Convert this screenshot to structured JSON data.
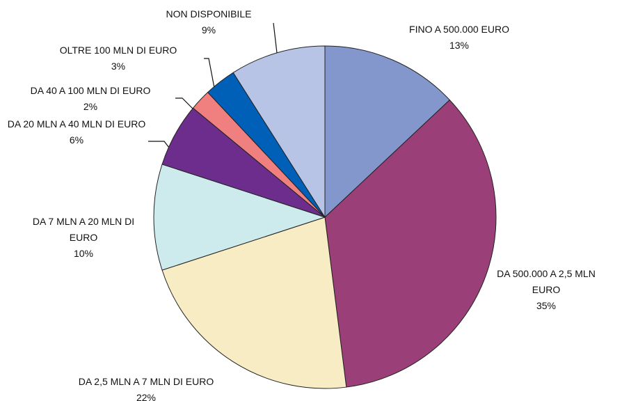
{
  "chart_data": {
    "type": "pie",
    "categories": [
      "FINO A 500.000 EURO",
      "DA 500.000 A 2,5 MLN EURO",
      "DA 2,5 MLN A 7 MLN DI EURO",
      "DA  7 MLN A 20 MLN DI EURO",
      "DA 20 MLN A 40 MLN DI EURO",
      "DA 40 A 100 MLN DI EURO",
      "OLTRE 100 MLN DI EURO",
      "NON DISPONIBILE"
    ],
    "values": [
      13,
      35,
      22,
      10,
      6,
      2,
      3,
      9
    ],
    "value_labels": [
      "13%",
      "35%",
      "22%",
      "10%",
      "6%",
      "2%",
      "3%",
      "9%"
    ],
    "colors": [
      "#8497cc",
      "#9b3f78",
      "#f7ecc4",
      "#cdeaec",
      "#6c2d8c",
      "#f08080",
      "#0060b8",
      "#b8c4e6"
    ]
  }
}
